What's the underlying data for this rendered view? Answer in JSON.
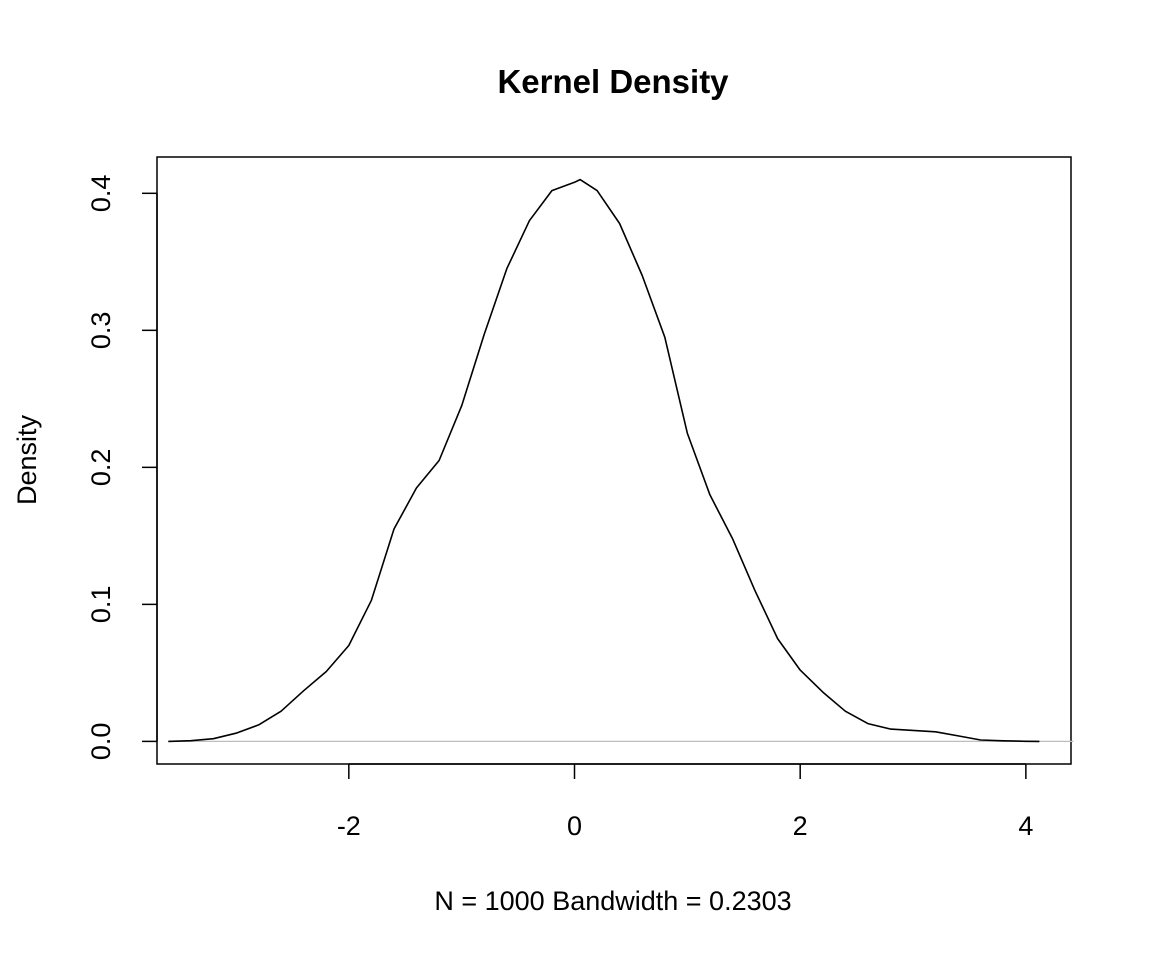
{
  "chart_data": {
    "type": "line",
    "title": "Kernel Density",
    "xlabel": "N = 1000   Bandwidth = 0.2303",
    "ylabel": "Density",
    "xlim": [
      -3.7,
      4.4
    ],
    "ylim": [
      -0.0165,
      0.4265
    ],
    "x_ticks": [
      {
        "value": -2,
        "label": "-2"
      },
      {
        "value": 0,
        "label": "0"
      },
      {
        "value": 2,
        "label": "2"
      },
      {
        "value": 4,
        "label": "4"
      }
    ],
    "y_ticks": [
      {
        "value": 0.0,
        "label": "0.0"
      },
      {
        "value": 0.1,
        "label": "0.1"
      },
      {
        "value": 0.2,
        "label": "0.2"
      },
      {
        "value": 0.3,
        "label": "0.3"
      },
      {
        "value": 0.4,
        "label": "0.4"
      }
    ],
    "grid": false,
    "zero_line": true,
    "series": [
      {
        "color": "#000000",
        "x": [
          -3.6,
          -3.4,
          -3.2,
          -3.0,
          -2.8,
          -2.6,
          -2.4,
          -2.2,
          -2.0,
          -1.8,
          -1.6,
          -1.4,
          -1.2,
          -1.0,
          -0.8,
          -0.6,
          -0.4,
          -0.2,
          0.0,
          0.05,
          0.2,
          0.4,
          0.6,
          0.8,
          1.0,
          1.2,
          1.4,
          1.6,
          1.8,
          2.0,
          2.2,
          2.4,
          2.6,
          2.8,
          3.0,
          3.2,
          3.4,
          3.6,
          3.8,
          4.0,
          4.12
        ],
        "y": [
          0.0,
          0.0005,
          0.002,
          0.006,
          0.012,
          0.022,
          0.037,
          0.051,
          0.07,
          0.103,
          0.155,
          0.185,
          0.205,
          0.245,
          0.297,
          0.345,
          0.38,
          0.402,
          0.408,
          0.41,
          0.402,
          0.378,
          0.34,
          0.295,
          0.225,
          0.18,
          0.148,
          0.11,
          0.075,
          0.052,
          0.036,
          0.022,
          0.013,
          0.009,
          0.008,
          0.007,
          0.004,
          0.001,
          0.0004,
          0.0001,
          0.0
        ]
      }
    ]
  }
}
